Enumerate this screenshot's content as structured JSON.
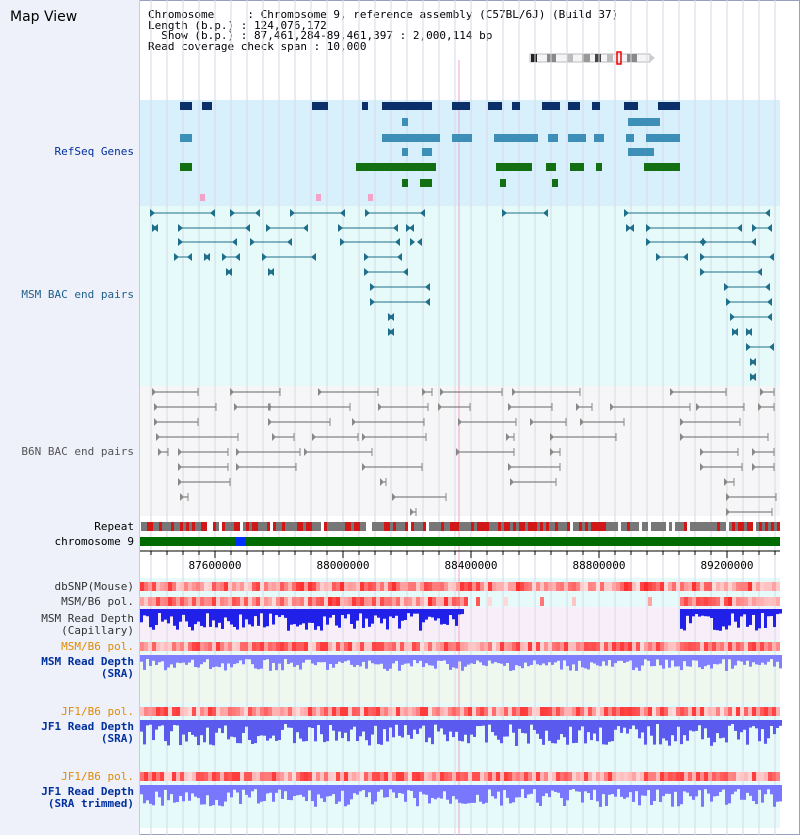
{
  "title": "Map View",
  "info": {
    "chromosome": "Chromosome     : Chromosome 9, reference assembly (C57BL/6J) (Build 37)",
    "length": "Length (b.p.) : 124,076,172",
    "show": "  Show (b.p.) : 87,461,284-89,461,397 : 2,000,114 bp",
    "coverage": "Read coverage check span : 10,000"
  },
  "tracks": {
    "refseq": "RefSeq Genes",
    "msm_bac": "MSM BAC end pairs",
    "b6n_bac": "B6N BAC end pairs",
    "repeat": "Repeat",
    "chromosome": "chromosome 9",
    "dbsnp": "dbSNP(Mouse)",
    "msm_pol": "MSM/B6 pol.",
    "msm_depth_cap_1": "MSM Read Depth",
    "msm_depth_cap_2": "(Capillary)",
    "msm_pol2": "MSM/B6 pol.",
    "msm_depth_sra_1": "MSM Read Depth",
    "msm_depth_sra_2": "(SRA)",
    "jf1_pol": "JF1/B6 pol.",
    "jf1_depth_1": "JF1 Read Depth",
    "jf1_depth_2": "(SRA)",
    "jf1_pol2": "JF1/B6 pol.",
    "jf1_trim_1": "JF1 Read Depth",
    "jf1_trim_2": "(SRA trimmed)"
  },
  "axis": {
    "ticks": [
      "87600000",
      "88000000",
      "88400000",
      "88800000",
      "89200000"
    ]
  },
  "colors": {
    "refseq_bg": "#d8f0fb",
    "bac_bg": "#e6fafa",
    "gene_dark": "#0a2f6b",
    "gene_mid": "#3d8fb8",
    "gene_green": "#127012",
    "msm_bac": "#1f6f8b",
    "b6n_bac": "#666666",
    "chrom": "#006b00",
    "label_blue": "#00309c",
    "label_orange": "#e08a00"
  }
}
